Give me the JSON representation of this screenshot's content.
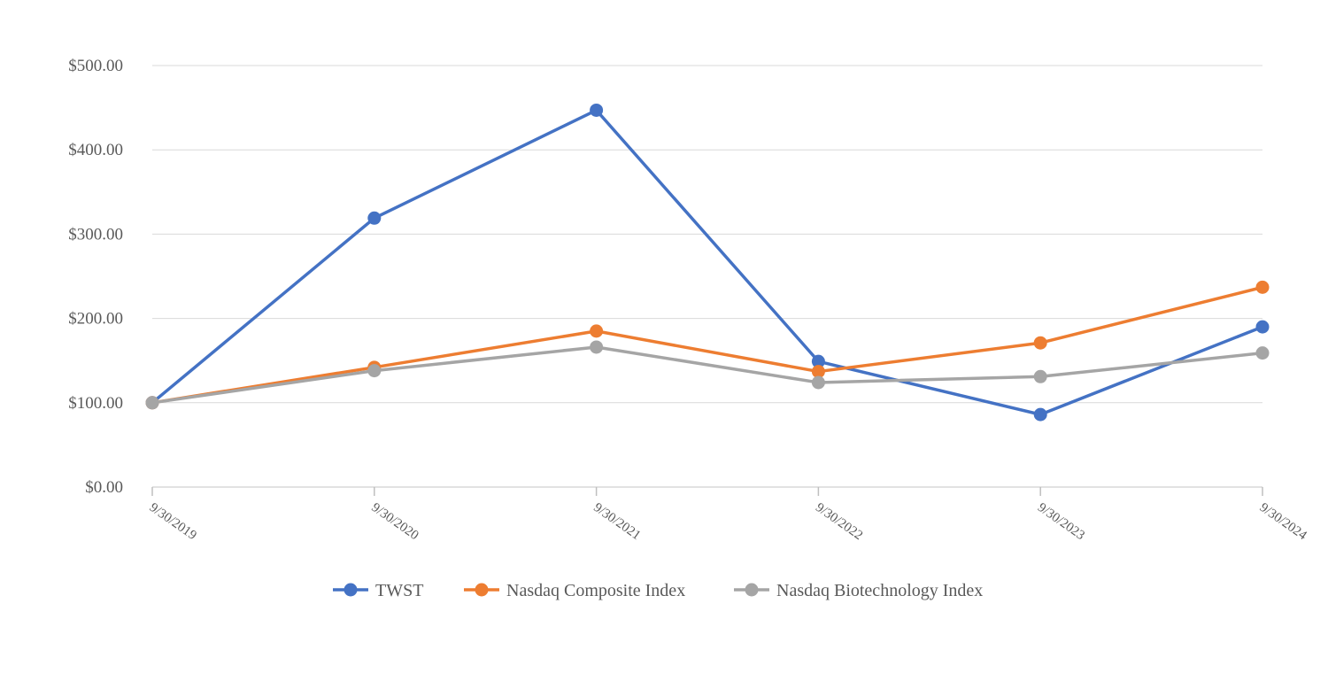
{
  "chart_data": {
    "type": "line",
    "categories": [
      "9/30/2019",
      "9/30/2020",
      "9/30/2021",
      "9/30/2022",
      "9/30/2023",
      "9/30/2024"
    ],
    "y_ticks": [
      "$0.00",
      "$100.00",
      "$200.00",
      "$300.00",
      "$400.00",
      "$500.00"
    ],
    "ylim": [
      0,
      500
    ],
    "grid": true,
    "legend_position": "bottom",
    "series": [
      {
        "name": "TWST",
        "color": "#4472c4",
        "values": [
          100,
          319,
          447,
          149,
          86,
          190
        ]
      },
      {
        "name": "Nasdaq Composite Index",
        "color": "#ed7d31",
        "values": [
          100,
          142,
          185,
          137,
          171,
          237
        ]
      },
      {
        "name": "Nasdaq Biotechnology Index",
        "color": "#a5a5a5",
        "values": [
          100,
          138,
          166,
          124,
          131,
          159
        ]
      }
    ]
  }
}
